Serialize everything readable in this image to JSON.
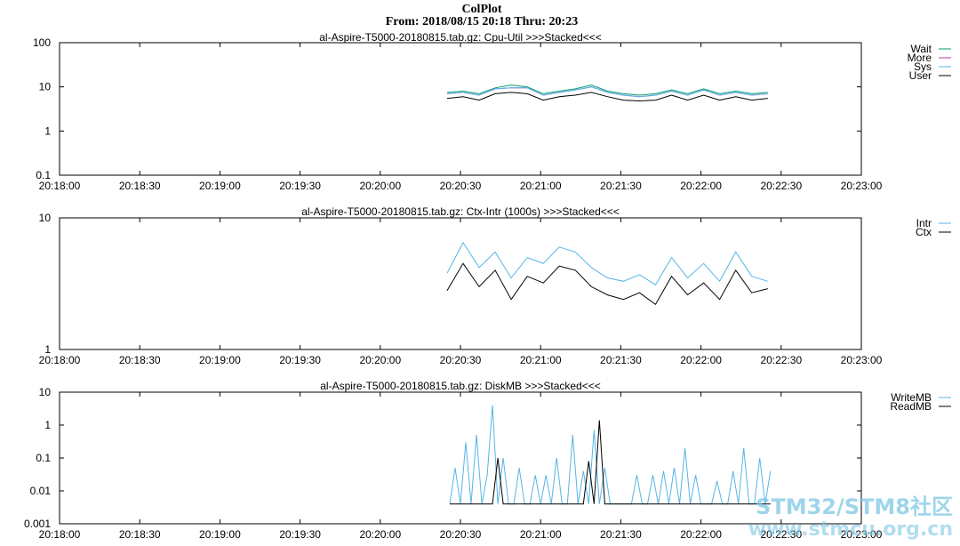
{
  "header": {
    "title": "ColPlot",
    "subtitle": "From: 2018/08/15 20:18 Thru: 20:23"
  },
  "x_tick_labels": [
    "20:18:00",
    "20:18:30",
    "20:19:00",
    "20:19:30",
    "20:20:00",
    "20:20:30",
    "20:21:00",
    "20:21:30",
    "20:22:00",
    "20:22:30",
    "20:23:00"
  ],
  "watermark": {
    "line1": "STM32/STM8社区",
    "line2": "www.stmcu.org.cn"
  },
  "colors": {
    "teal": "#009e73",
    "magenta": "#cc3399",
    "blue": "#56b4e9",
    "black": "#000000"
  },
  "chart_data": [
    {
      "type": "line",
      "title": "al-Aspire-T5000-20180815.tab.gz: Cpu-Util >>>Stacked<<<",
      "y_scale": "log",
      "ylim": [
        0.1,
        100
      ],
      "y_tick_labels": [
        "0.1",
        "1",
        "10",
        "100"
      ],
      "xlim": [
        "20:18:00",
        "20:23:00"
      ],
      "legend_position": "right",
      "x": [
        "20:20:25",
        "20:20:31",
        "20:20:37",
        "20:20:43",
        "20:20:49",
        "20:20:55",
        "20:21:01",
        "20:21:07",
        "20:21:13",
        "20:21:19",
        "20:21:25",
        "20:21:31",
        "20:21:37",
        "20:21:43",
        "20:21:49",
        "20:21:55",
        "20:22:01",
        "20:22:07",
        "20:22:13",
        "20:22:19",
        "20:22:25"
      ],
      "series": [
        {
          "name": "Wait",
          "color": "#009e73",
          "values": [
            7.5,
            8,
            7,
            9.5,
            11,
            10,
            7,
            8,
            9,
            11,
            8,
            7,
            6.5,
            7,
            8.5,
            7,
            9,
            7,
            8,
            7,
            7.5
          ]
        },
        {
          "name": "More",
          "color": "#cc3399",
          "values": [
            7,
            7.5,
            6.5,
            9,
            9.5,
            9.5,
            6.5,
            7.5,
            8.5,
            10,
            7.5,
            6.5,
            6,
            6.5,
            8,
            6.5,
            8.5,
            6.5,
            7.5,
            6.5,
            7
          ]
        },
        {
          "name": "Sys",
          "color": "#56b4e9",
          "values": [
            7,
            7.5,
            6.5,
            9,
            9.5,
            9.5,
            6.5,
            7.5,
            8.5,
            10,
            7.5,
            6.5,
            6,
            6.5,
            8,
            6.5,
            8.5,
            6.5,
            7.5,
            6.5,
            7
          ]
        },
        {
          "name": "User",
          "color": "#000000",
          "values": [
            5.5,
            6,
            5,
            7,
            7.5,
            7,
            5,
            6,
            6.5,
            7.5,
            6,
            5,
            4.8,
            5,
            6.5,
            5,
            6.5,
            5,
            6,
            5,
            5.5
          ]
        }
      ]
    },
    {
      "type": "line",
      "title": "al-Aspire-T5000-20180815.tab.gz: Ctx-Intr (1000s) >>>Stacked<<<",
      "y_scale": "log",
      "ylim": [
        1,
        10
      ],
      "y_tick_labels": [
        "1",
        "10"
      ],
      "xlim": [
        "20:18:00",
        "20:23:00"
      ],
      "legend_position": "right",
      "x": [
        "20:20:25",
        "20:20:31",
        "20:20:37",
        "20:20:43",
        "20:20:49",
        "20:20:55",
        "20:21:01",
        "20:21:07",
        "20:21:13",
        "20:21:19",
        "20:21:25",
        "20:21:31",
        "20:21:37",
        "20:21:43",
        "20:21:49",
        "20:21:55",
        "20:22:01",
        "20:22:07",
        "20:22:13",
        "20:22:19",
        "20:22:25"
      ],
      "series": [
        {
          "name": "Intr",
          "color": "#56b4e9",
          "values": [
            3.8,
            6.5,
            4.2,
            5.5,
            3.5,
            5,
            4.5,
            6,
            5.5,
            4.2,
            3.5,
            3.3,
            3.7,
            3.1,
            5,
            3.5,
            4.5,
            3.3,
            5.5,
            3.6,
            3.3
          ]
        },
        {
          "name": "Ctx",
          "color": "#000000",
          "values": [
            2.8,
            4.5,
            3.0,
            4.0,
            2.4,
            3.6,
            3.2,
            4.3,
            4.0,
            3.0,
            2.6,
            2.4,
            2.7,
            2.2,
            3.6,
            2.6,
            3.2,
            2.4,
            4.0,
            2.7,
            2.9
          ]
        }
      ]
    },
    {
      "type": "line",
      "title": "al-Aspire-T5000-20180815.tab.gz: DiskMB >>>Stacked<<<",
      "y_scale": "log",
      "ylim": [
        0.001,
        10
      ],
      "y_tick_labels": [
        "0.001",
        "0.01",
        "0.1",
        "1",
        "10"
      ],
      "xlim": [
        "20:18:00",
        "20:23:00"
      ],
      "legend_position": "right",
      "x": [
        "20:20:26",
        "20:20:28",
        "20:20:30",
        "20:20:32",
        "20:20:34",
        "20:20:36",
        "20:20:38",
        "20:20:40",
        "20:20:42",
        "20:20:44",
        "20:20:46",
        "20:20:48",
        "20:20:50",
        "20:20:52",
        "20:20:54",
        "20:20:56",
        "20:20:58",
        "20:21:00",
        "20:21:02",
        "20:21:04",
        "20:21:06",
        "20:21:08",
        "20:21:10",
        "20:21:12",
        "20:21:14",
        "20:21:16",
        "20:21:18",
        "20:21:20",
        "20:21:22",
        "20:21:24",
        "20:21:26",
        "20:21:28",
        "20:21:30",
        "20:21:32",
        "20:21:34",
        "20:21:36",
        "20:21:38",
        "20:21:40",
        "20:21:42",
        "20:21:44",
        "20:21:46",
        "20:21:48",
        "20:21:50",
        "20:21:52",
        "20:21:54",
        "20:21:56",
        "20:21:58",
        "20:22:00",
        "20:22:02",
        "20:22:04",
        "20:22:06",
        "20:22:08",
        "20:22:10",
        "20:22:12",
        "20:22:14",
        "20:22:16",
        "20:22:18",
        "20:22:20",
        "20:22:22",
        "20:22:24",
        "20:22:26"
      ],
      "series": [
        {
          "name": "WriteMB",
          "color": "#56b4e9",
          "values": [
            0.004,
            0.05,
            0.004,
            0.3,
            0.004,
            0.5,
            0.004,
            0.03,
            4,
            0.004,
            0.1,
            0.004,
            0.004,
            0.05,
            0.004,
            0.004,
            0.03,
            0.004,
            0.03,
            0.004,
            0.1,
            0.004,
            0.004,
            0.5,
            0.004,
            0.04,
            0.004,
            0.7,
            0.004,
            0.05,
            0.004,
            0.004,
            0.004,
            0.004,
            0.004,
            0.03,
            0.004,
            0.004,
            0.03,
            0.004,
            0.04,
            0.004,
            0.05,
            0.004,
            0.2,
            0.004,
            0.03,
            0.004,
            0.004,
            0.004,
            0.02,
            0.004,
            0.004,
            0.04,
            0.004,
            0.2,
            0.004,
            0.004,
            0.1,
            0.004,
            0.04
          ]
        },
        {
          "name": "ReadMB",
          "color": "#000000",
          "values": [
            0.004,
            0.004,
            0.004,
            0.004,
            0.004,
            0.004,
            0.004,
            0.004,
            0.004,
            0.1,
            0.004,
            0.004,
            0.004,
            0.004,
            0.004,
            0.004,
            0.004,
            0.004,
            0.004,
            0.004,
            0.004,
            0.004,
            0.004,
            0.004,
            0.004,
            0.004,
            0.08,
            0.004,
            1.4,
            0.004,
            0.004,
            0.004,
            0.004,
            0.004,
            0.004,
            0.004,
            0.004,
            0.004,
            0.004,
            0.004,
            0.004,
            0.004,
            0.004,
            0.004,
            0.004,
            0.004,
            0.004,
            0.004,
            0.004,
            0.004,
            0.004,
            0.004,
            0.004,
            0.004,
            0.004,
            0.004,
            0.004,
            0.004,
            0.004,
            0.004,
            0.004
          ]
        }
      ]
    }
  ]
}
